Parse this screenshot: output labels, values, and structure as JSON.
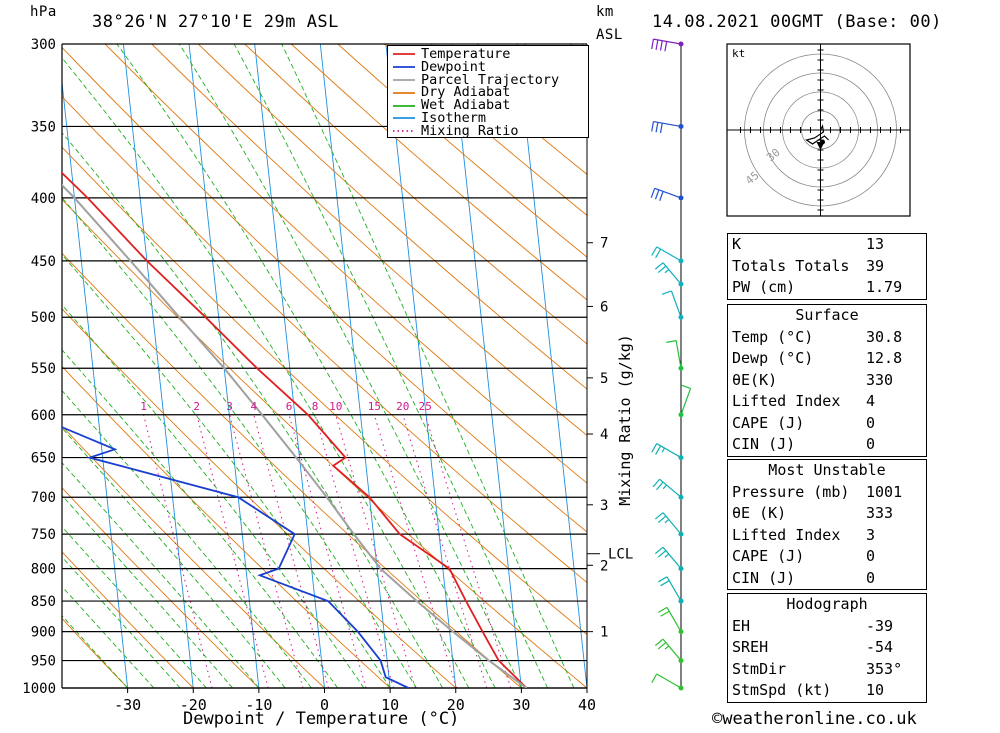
{
  "header": {
    "unit_left": "hPa",
    "location": "38°26'N  27°10'E  29m  ASL",
    "km_label": "km",
    "asl_label": "ASL",
    "datetime": "14.08.2021  00GMT  (Base: 00)"
  },
  "legend": {
    "items": [
      {
        "label": "Temperature",
        "color": "#e02020"
      },
      {
        "label": "Dewpoint",
        "color": "#1a3fd0"
      },
      {
        "label": "Parcel Trajectory",
        "color": "#a0a0a0"
      },
      {
        "label": "Dry Adiabat",
        "color": "#e07810"
      },
      {
        "label": "Wet Adiabat",
        "color": "#20b020"
      },
      {
        "label": "Isotherm",
        "color": "#2090e0"
      },
      {
        "label": "Mixing Ratio",
        "color": "#d01890"
      }
    ]
  },
  "axes": {
    "xlabel": "Dewpoint / Temperature (°C)",
    "mixing_label": "Mixing Ratio (g/kg)",
    "mixing_ticks": [
      "1",
      "2",
      "3",
      "4",
      "6",
      "8",
      "10",
      "15",
      "20",
      "25"
    ],
    "lcl_label": "LCL"
  },
  "hodograph": {
    "unit": "kt",
    "ring_labels": [
      "30",
      "45"
    ]
  },
  "indices": {
    "top": [
      {
        "label": "K",
        "value": "13"
      },
      {
        "label": "Totals Totals",
        "value": "39"
      },
      {
        "label": "PW (cm)",
        "value": "1.79"
      }
    ],
    "surface_title": "Surface",
    "surface": [
      {
        "label": "Temp (°C)",
        "value": "30.8"
      },
      {
        "label": "Dewp (°C)",
        "value": "12.8"
      },
      {
        "label": "θE(K)",
        "value": "330"
      },
      {
        "label": "Lifted Index",
        "value": "4"
      },
      {
        "label": "CAPE (J)",
        "value": "0"
      },
      {
        "label": "CIN (J)",
        "value": "0"
      }
    ],
    "mu_title": "Most Unstable",
    "mu": [
      {
        "label": "Pressure (mb)",
        "value": "1001"
      },
      {
        "label": "θE (K)",
        "value": "333"
      },
      {
        "label": "Lifted Index",
        "value": "3"
      },
      {
        "label": "CAPE (J)",
        "value": "0"
      },
      {
        "label": "CIN (J)",
        "value": "0"
      }
    ],
    "hodo_title": "Hodograph",
    "hodo": [
      {
        "label": "EH",
        "value": "-39"
      },
      {
        "label": "SREH",
        "value": "-54"
      },
      {
        "label": "StmDir",
        "value": "353°"
      },
      {
        "label": "StmSpd (kt)",
        "value": "10"
      }
    ]
  },
  "credit": "©weatheronline.co.uk",
  "chart_data": {
    "type": "line",
    "title": "38°26'N  27°10'E  29m  ASL",
    "xlabel": "Dewpoint / Temperature (°C)",
    "ylabel": "hPa",
    "xlim": [
      -40,
      40
    ],
    "ylim": [
      1000,
      300
    ],
    "y_scale": "log (pressure)",
    "pressure_ticks": [
      300,
      350,
      400,
      450,
      500,
      550,
      600,
      650,
      700,
      750,
      800,
      850,
      900,
      950,
      1000
    ],
    "temperature_ticks": [
      -30,
      -20,
      -10,
      0,
      10,
      20,
      30,
      40
    ],
    "km_ticks": [
      {
        "km": 1,
        "p": 900
      },
      {
        "km": 2,
        "p": 795
      },
      {
        "km": 3,
        "p": 710
      },
      {
        "km": 4,
        "p": 622
      },
      {
        "km": 5,
        "p": 560
      },
      {
        "km": 6,
        "p": 490
      },
      {
        "km": 7,
        "p": 435
      }
    ],
    "lcl_pressure": 778,
    "mixing_ratio_values": [
      1,
      2,
      3,
      4,
      6,
      8,
      10,
      15,
      20,
      25
    ],
    "series": [
      {
        "name": "Temperature",
        "color": "#e02020",
        "points": [
          [
            1000,
            30.8
          ],
          [
            950,
            27
          ],
          [
            900,
            25
          ],
          [
            850,
            23
          ],
          [
            800,
            21
          ],
          [
            750,
            14
          ],
          [
            700,
            10
          ],
          [
            660,
            5
          ],
          [
            650,
            7
          ],
          [
            600,
            2
          ],
          [
            550,
            -5
          ],
          [
            500,
            -12
          ],
          [
            450,
            -20
          ],
          [
            400,
            -28
          ],
          [
            350,
            -38
          ],
          [
            300,
            -48
          ]
        ]
      },
      {
        "name": "Dewpoint",
        "color": "#1a3fd0",
        "points": [
          [
            1000,
            12.8
          ],
          [
            980,
            9.5
          ],
          [
            950,
            9
          ],
          [
            900,
            6
          ],
          [
            850,
            2
          ],
          [
            810,
            -8
          ],
          [
            800,
            -5
          ],
          [
            750,
            -2
          ],
          [
            700,
            -10
          ],
          [
            650,
            -32
          ],
          [
            640,
            -28
          ],
          [
            600,
            -40
          ],
          [
            550,
            -49
          ],
          [
            500,
            -47
          ],
          [
            450,
            -54
          ],
          [
            400,
            -58
          ],
          [
            350,
            -64
          ],
          [
            300,
            -72
          ]
        ]
      },
      {
        "name": "Parcel Trajectory",
        "color": "#a0a0a0",
        "points": [
          [
            1000,
            30.8
          ],
          [
            950,
            25.5
          ],
          [
            900,
            20.5
          ],
          [
            850,
            15.5
          ],
          [
            800,
            10.5
          ],
          [
            778,
            9
          ],
          [
            750,
            7
          ],
          [
            700,
            3.5
          ],
          [
            650,
            -0.5
          ],
          [
            600,
            -5
          ],
          [
            550,
            -10
          ],
          [
            500,
            -16
          ],
          [
            450,
            -22.5
          ],
          [
            400,
            -30
          ],
          [
            350,
            -39.5
          ],
          [
            300,
            -50
          ]
        ]
      }
    ],
    "wind_profile": [
      {
        "p": 1000,
        "dir": 300,
        "spd": 10
      },
      {
        "p": 950,
        "dir": 320,
        "spd": 15
      },
      {
        "p": 900,
        "dir": 330,
        "spd": 20
      },
      {
        "p": 850,
        "dir": 330,
        "spd": 20
      },
      {
        "p": 800,
        "dir": 320,
        "spd": 15
      },
      {
        "p": 750,
        "dir": 320,
        "spd": 15
      },
      {
        "p": 700,
        "dir": 310,
        "spd": 15
      },
      {
        "p": 650,
        "dir": 300,
        "spd": 15
      },
      {
        "p": 600,
        "dir": 20,
        "spd": 10
      },
      {
        "p": 550,
        "dir": 350,
        "spd": 10
      },
      {
        "p": 500,
        "dir": 340,
        "spd": 10
      },
      {
        "p": 470,
        "dir": 320,
        "spd": 15
      },
      {
        "p": 450,
        "dir": 300,
        "spd": 20
      },
      {
        "p": 400,
        "dir": 290,
        "spd": 30
      },
      {
        "p": 350,
        "dir": 280,
        "spd": 30
      },
      {
        "p": 300,
        "dir": 280,
        "spd": 40
      }
    ],
    "hodograph_points": [
      [
        0,
        0
      ],
      [
        2,
        4
      ],
      [
        3,
        -2
      ],
      [
        -6,
        -8
      ],
      [
        -14,
        -10
      ],
      [
        -8,
        -14
      ],
      [
        4,
        -6
      ],
      [
        8,
        -10
      ]
    ]
  }
}
